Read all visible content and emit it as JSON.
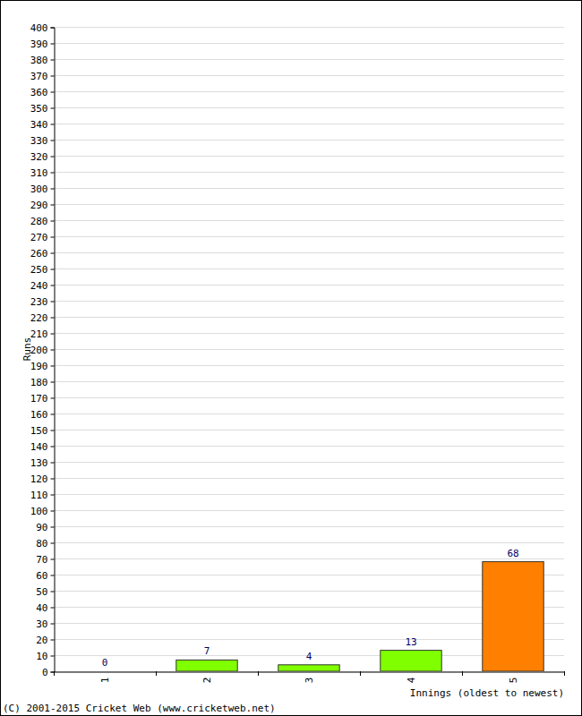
{
  "chart_data": {
    "type": "bar",
    "x_label": "Innings (oldest to newest)",
    "y_label": "Runs",
    "annotations": [
      "(C) 2001-2015 Cricket Web (www.cricketweb.net)"
    ],
    "categories": [
      "1",
      "2",
      "3",
      "4",
      "5"
    ],
    "values": [
      0,
      7,
      4,
      13,
      68
    ],
    "colors": [
      "#80ff00",
      "#80ff00",
      "#80ff00",
      "#80ff00",
      "#ff8000"
    ],
    "ylim": [
      0,
      400
    ],
    "yticks": [
      0,
      10,
      20,
      30,
      40,
      50,
      60,
      70,
      80,
      90,
      100,
      110,
      120,
      130,
      140,
      150,
      160,
      170,
      180,
      190,
      200,
      210,
      220,
      230,
      240,
      250,
      260,
      270,
      280,
      290,
      300,
      310,
      320,
      330,
      340,
      350,
      360,
      370,
      380,
      390,
      400
    ],
    "grid": true,
    "data_labels": true
  }
}
